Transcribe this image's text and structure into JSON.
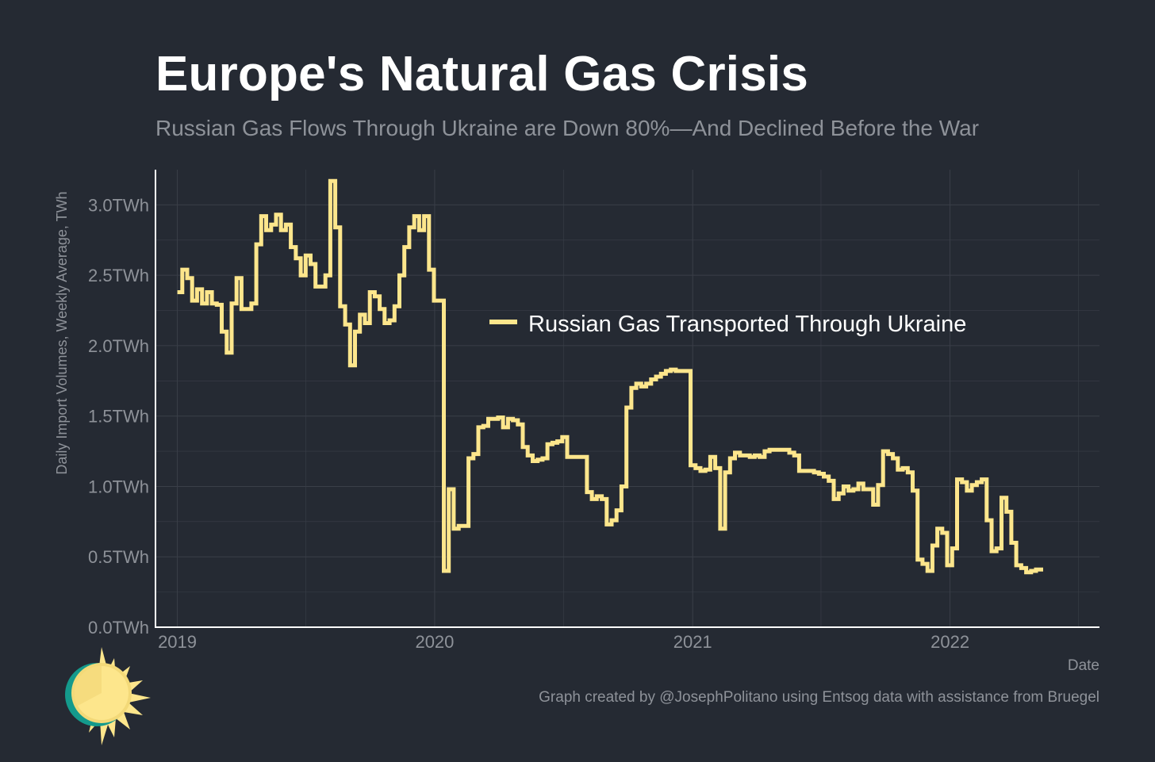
{
  "header": {
    "title": "Europe's Natural Gas Crisis",
    "subtitle": "Russian Gas Flows Through Ukraine are Down 80%—And Declined Before the War"
  },
  "footer": {
    "caption": "Graph created by @JosephPolitano using Entsog data with assistance from Bruegel"
  },
  "logo": {
    "icon": "sun-logo-icon"
  },
  "chart_data": {
    "type": "line",
    "title": "Europe's Natural Gas Crisis",
    "subtitle": "Russian Gas Flows Through Ukraine are Down 80%—And Declined Before the War",
    "xlabel": "Date",
    "ylabel": "Daily Import Volumes, Weekly Average, TWh",
    "xlim": [
      "2018-12-01",
      "2022-08-01"
    ],
    "ylim": [
      0,
      3.25
    ],
    "x_ticks": [
      {
        "date": "2019-01-01",
        "label": "2019"
      },
      {
        "date": "2020-01-01",
        "label": "2020"
      },
      {
        "date": "2021-01-01",
        "label": "2021"
      },
      {
        "date": "2022-01-01",
        "label": "2022"
      }
    ],
    "y_ticks": [
      {
        "value": 0,
        "label": "0.0TWh"
      },
      {
        "value": 0.5,
        "label": "0.5TWh"
      },
      {
        "value": 1.0,
        "label": "1.0TWh"
      },
      {
        "value": 1.5,
        "label": "1.5TWh"
      },
      {
        "value": 2.0,
        "label": "2.0TWh"
      },
      {
        "value": 2.5,
        "label": "2.5TWh"
      },
      {
        "value": 3.0,
        "label": "3.0TWh"
      }
    ],
    "grid": true,
    "legend_position": "inside-center",
    "colors": {
      "background": "#252a33",
      "line": "#fde68c",
      "grid": "#3a3f48",
      "axis": "#ffffff",
      "tick_label": "#8e9299",
      "legend_text": "#ffffff"
    },
    "series": [
      {
        "name": "Russian Gas Transported Through Ukraine",
        "step": true,
        "points": [
          [
            "2019-01-01",
            2.38
          ],
          [
            "2019-01-08",
            2.54
          ],
          [
            "2019-01-15",
            2.48
          ],
          [
            "2019-01-22",
            2.32
          ],
          [
            "2019-01-29",
            2.4
          ],
          [
            "2019-02-05",
            2.3
          ],
          [
            "2019-02-12",
            2.38
          ],
          [
            "2019-02-19",
            2.3
          ],
          [
            "2019-02-26",
            2.29
          ],
          [
            "2019-03-05",
            2.1
          ],
          [
            "2019-03-12",
            1.95
          ],
          [
            "2019-03-19",
            2.3
          ],
          [
            "2019-03-26",
            2.48
          ],
          [
            "2019-04-02",
            2.26
          ],
          [
            "2019-04-09",
            2.26
          ],
          [
            "2019-04-16",
            2.3
          ],
          [
            "2019-04-23",
            2.72
          ],
          [
            "2019-04-30",
            2.92
          ],
          [
            "2019-05-07",
            2.82
          ],
          [
            "2019-05-14",
            2.86
          ],
          [
            "2019-05-21",
            2.93
          ],
          [
            "2019-05-28",
            2.82
          ],
          [
            "2019-06-04",
            2.86
          ],
          [
            "2019-06-11",
            2.7
          ],
          [
            "2019-06-18",
            2.62
          ],
          [
            "2019-06-25",
            2.5
          ],
          [
            "2019-07-02",
            2.64
          ],
          [
            "2019-07-09",
            2.58
          ],
          [
            "2019-07-16",
            2.42
          ],
          [
            "2019-07-23",
            2.42
          ],
          [
            "2019-07-30",
            2.5
          ],
          [
            "2019-08-06",
            3.17
          ],
          [
            "2019-08-13",
            2.84
          ],
          [
            "2019-08-20",
            2.28
          ],
          [
            "2019-08-27",
            2.15
          ],
          [
            "2019-09-03",
            1.86
          ],
          [
            "2019-09-10",
            2.1
          ],
          [
            "2019-09-17",
            2.22
          ],
          [
            "2019-09-24",
            2.16
          ],
          [
            "2019-10-01",
            2.38
          ],
          [
            "2019-10-08",
            2.35
          ],
          [
            "2019-10-15",
            2.26
          ],
          [
            "2019-10-22",
            2.16
          ],
          [
            "2019-10-29",
            2.18
          ],
          [
            "2019-11-05",
            2.28
          ],
          [
            "2019-11-12",
            2.5
          ],
          [
            "2019-11-19",
            2.7
          ],
          [
            "2019-11-26",
            2.84
          ],
          [
            "2019-12-03",
            2.92
          ],
          [
            "2019-12-10",
            2.82
          ],
          [
            "2019-12-17",
            2.92
          ],
          [
            "2019-12-24",
            2.54
          ],
          [
            "2019-12-31",
            2.32
          ],
          [
            "2020-01-07",
            2.32
          ],
          [
            "2020-01-14",
            0.4
          ],
          [
            "2020-01-21",
            0.98
          ],
          [
            "2020-01-28",
            0.7
          ],
          [
            "2020-02-04",
            0.72
          ],
          [
            "2020-02-11",
            0.72
          ],
          [
            "2020-02-18",
            1.2
          ],
          [
            "2020-02-25",
            1.23
          ],
          [
            "2020-03-03",
            1.42
          ],
          [
            "2020-03-10",
            1.43
          ],
          [
            "2020-03-17",
            1.48
          ],
          [
            "2020-03-24",
            1.48
          ],
          [
            "2020-03-31",
            1.49
          ],
          [
            "2020-04-07",
            1.42
          ],
          [
            "2020-04-14",
            1.48
          ],
          [
            "2020-04-21",
            1.47
          ],
          [
            "2020-04-28",
            1.44
          ],
          [
            "2020-05-05",
            1.28
          ],
          [
            "2020-05-12",
            1.22
          ],
          [
            "2020-05-19",
            1.18
          ],
          [
            "2020-05-26",
            1.19
          ],
          [
            "2020-06-02",
            1.2
          ],
          [
            "2020-06-09",
            1.3
          ],
          [
            "2020-06-16",
            1.31
          ],
          [
            "2020-06-23",
            1.32
          ],
          [
            "2020-06-30",
            1.35
          ],
          [
            "2020-07-07",
            1.21
          ],
          [
            "2020-07-14",
            1.21
          ],
          [
            "2020-07-21",
            1.21
          ],
          [
            "2020-07-28",
            1.21
          ],
          [
            "2020-08-04",
            0.96
          ],
          [
            "2020-08-11",
            0.91
          ],
          [
            "2020-08-18",
            0.93
          ],
          [
            "2020-08-25",
            0.91
          ],
          [
            "2020-09-01",
            0.73
          ],
          [
            "2020-09-08",
            0.76
          ],
          [
            "2020-09-15",
            0.83
          ],
          [
            "2020-09-22",
            1.0
          ],
          [
            "2020-09-29",
            1.56
          ],
          [
            "2020-10-06",
            1.7
          ],
          [
            "2020-10-13",
            1.73
          ],
          [
            "2020-10-20",
            1.71
          ],
          [
            "2020-10-27",
            1.73
          ],
          [
            "2020-11-03",
            1.76
          ],
          [
            "2020-11-10",
            1.78
          ],
          [
            "2020-11-17",
            1.8
          ],
          [
            "2020-11-24",
            1.82
          ],
          [
            "2020-12-01",
            1.83
          ],
          [
            "2020-12-08",
            1.82
          ],
          [
            "2020-12-15",
            1.82
          ],
          [
            "2020-12-22",
            1.82
          ],
          [
            "2020-12-29",
            1.15
          ],
          [
            "2021-01-05",
            1.13
          ],
          [
            "2021-01-12",
            1.11
          ],
          [
            "2021-01-19",
            1.12
          ],
          [
            "2021-01-26",
            1.21
          ],
          [
            "2021-02-02",
            1.13
          ],
          [
            "2021-02-09",
            0.7
          ],
          [
            "2021-02-16",
            1.1
          ],
          [
            "2021-02-23",
            1.2
          ],
          [
            "2021-03-02",
            1.24
          ],
          [
            "2021-03-09",
            1.22
          ],
          [
            "2021-03-16",
            1.22
          ],
          [
            "2021-03-23",
            1.21
          ],
          [
            "2021-03-30",
            1.22
          ],
          [
            "2021-04-06",
            1.21
          ],
          [
            "2021-04-13",
            1.25
          ],
          [
            "2021-04-20",
            1.26
          ],
          [
            "2021-04-27",
            1.26
          ],
          [
            "2021-05-04",
            1.26
          ],
          [
            "2021-05-11",
            1.26
          ],
          [
            "2021-05-18",
            1.24
          ],
          [
            "2021-05-25",
            1.22
          ],
          [
            "2021-06-01",
            1.11
          ],
          [
            "2021-06-08",
            1.11
          ],
          [
            "2021-06-15",
            1.11
          ],
          [
            "2021-06-22",
            1.1
          ],
          [
            "2021-06-29",
            1.09
          ],
          [
            "2021-07-06",
            1.07
          ],
          [
            "2021-07-13",
            1.04
          ],
          [
            "2021-07-20",
            0.91
          ],
          [
            "2021-07-27",
            0.95
          ],
          [
            "2021-08-03",
            1.0
          ],
          [
            "2021-08-10",
            0.97
          ],
          [
            "2021-08-17",
            0.98
          ],
          [
            "2021-08-24",
            1.02
          ],
          [
            "2021-08-31",
            0.98
          ],
          [
            "2021-09-07",
            0.98
          ],
          [
            "2021-09-14",
            0.87
          ],
          [
            "2021-09-21",
            1.01
          ],
          [
            "2021-09-28",
            1.25
          ],
          [
            "2021-10-05",
            1.23
          ],
          [
            "2021-10-12",
            1.2
          ],
          [
            "2021-10-19",
            1.12
          ],
          [
            "2021-10-26",
            1.13
          ],
          [
            "2021-11-02",
            1.1
          ],
          [
            "2021-11-09",
            0.97
          ],
          [
            "2021-11-16",
            0.48
          ],
          [
            "2021-11-23",
            0.45
          ],
          [
            "2021-11-30",
            0.4
          ],
          [
            "2021-12-07",
            0.58
          ],
          [
            "2021-12-14",
            0.7
          ],
          [
            "2021-12-21",
            0.67
          ],
          [
            "2021-12-28",
            0.44
          ],
          [
            "2022-01-04",
            0.56
          ],
          [
            "2022-01-11",
            1.05
          ],
          [
            "2022-01-18",
            1.03
          ],
          [
            "2022-01-25",
            0.97
          ],
          [
            "2022-02-01",
            1.01
          ],
          [
            "2022-02-08",
            1.03
          ],
          [
            "2022-02-15",
            1.05
          ],
          [
            "2022-02-22",
            0.76
          ],
          [
            "2022-03-01",
            0.54
          ],
          [
            "2022-03-08",
            0.56
          ],
          [
            "2022-03-15",
            0.92
          ],
          [
            "2022-03-22",
            0.82
          ],
          [
            "2022-03-29",
            0.6
          ],
          [
            "2022-04-05",
            0.44
          ],
          [
            "2022-04-12",
            0.42
          ],
          [
            "2022-04-19",
            0.39
          ],
          [
            "2022-04-26",
            0.4
          ],
          [
            "2022-05-03",
            0.41
          ]
        ]
      }
    ]
  }
}
